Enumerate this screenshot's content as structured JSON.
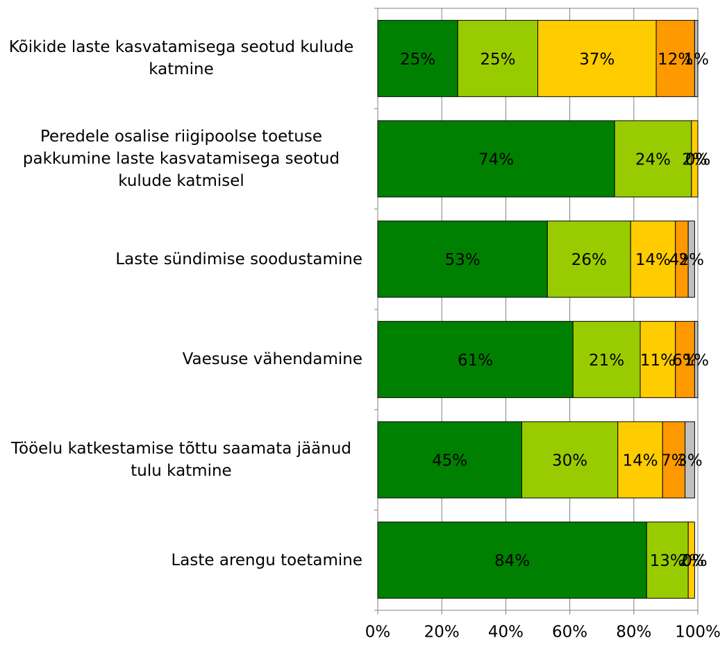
{
  "chart_data": {
    "type": "stacked-barh",
    "categories": [
      "Kõikide laste kasvatamisega seotud kulude katmine",
      "Peredele osalise riigipoolse toetuse pakkumine laste kasvatamisega seotud kulude katmisel",
      "Laste sündimise soodustamine",
      "Vaesuse vähendamine",
      "Tööelu katkestamise tõttu saamata jäänud tulu katmine",
      "Laste arengu toetamine"
    ],
    "series": [
      {
        "color": "#008000",
        "values": [
          25,
          74,
          53,
          61,
          45,
          84
        ],
        "value_labels": [
          "25%",
          "74%",
          "53%",
          "61%",
          "45%",
          "84%"
        ]
      },
      {
        "color": "#99cc00",
        "values": [
          25,
          24,
          26,
          21,
          30,
          13
        ],
        "value_labels": [
          "25%",
          "24%",
          "26%",
          "21%",
          "30%",
          "13%"
        ]
      },
      {
        "color": "#ffcc00",
        "values": [
          37,
          2,
          14,
          11,
          14,
          2
        ],
        "value_labels": [
          "37%",
          "2%",
          "14%",
          "11%",
          "14%",
          "2%"
        ]
      },
      {
        "color": "#ff9900",
        "values": [
          12,
          0,
          4,
          6,
          7,
          0
        ],
        "value_labels": [
          "12%",
          "0%",
          "4%",
          "6%",
          "7%",
          "0%"
        ]
      },
      {
        "color": "#c0c0c0",
        "values": [
          1,
          0,
          2,
          1,
          3,
          0
        ],
        "value_labels": [
          "1%",
          "0%",
          "2%",
          "1%",
          "3%",
          "0%"
        ]
      }
    ],
    "xlim": [
      0,
      100
    ],
    "xticks": [
      {
        "value": 0,
        "label": "0%"
      },
      {
        "value": 20,
        "label": "20%"
      },
      {
        "value": 40,
        "label": "40%"
      },
      {
        "value": 60,
        "label": "60%"
      },
      {
        "value": 80,
        "label": "80%"
      },
      {
        "value": 100,
        "label": "100%"
      }
    ],
    "grid": true
  }
}
